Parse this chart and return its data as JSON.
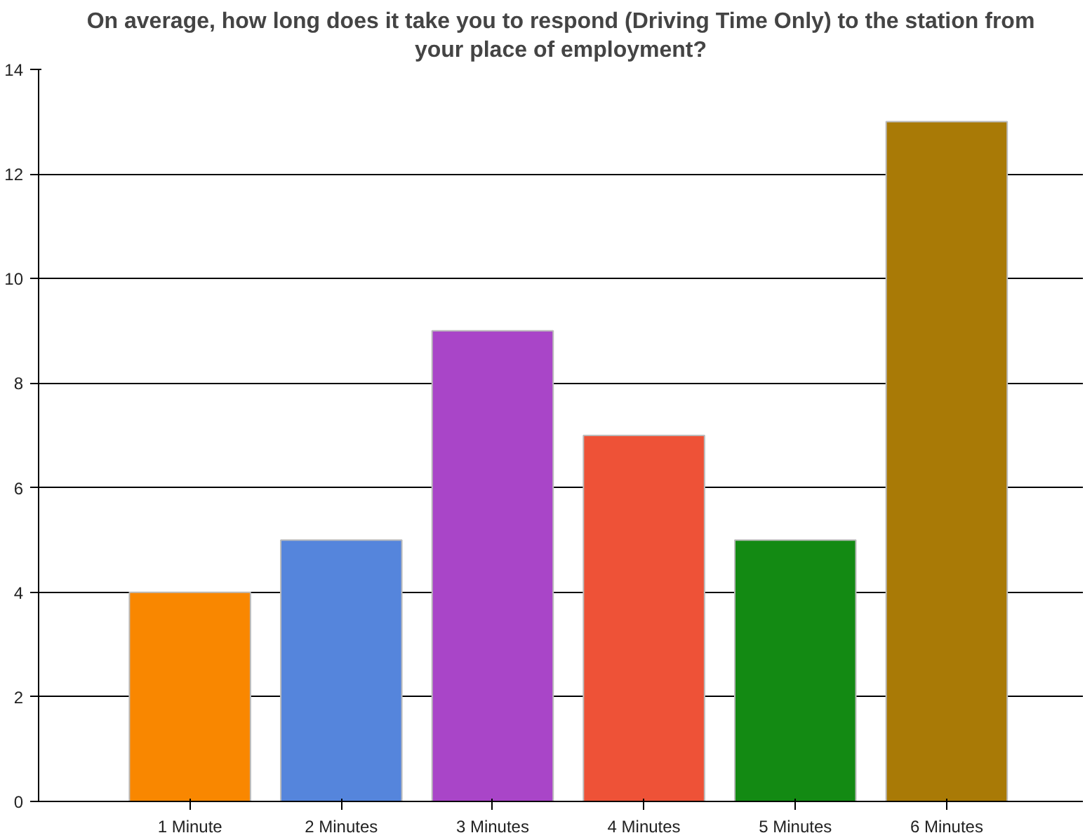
{
  "chart_data": {
    "type": "bar",
    "title": "On average, how long does it take you to respond (Driving Time Only) to the station from your place of employment?",
    "categories": [
      "1 Minute",
      "2 Minutes",
      "3 Minutes",
      "4 Minutes",
      "5 Minutes",
      "6 Minutes"
    ],
    "values": [
      4,
      5,
      9,
      7,
      5,
      13
    ],
    "colors": [
      "#f98700",
      "#5585dc",
      "#a945c8",
      "#ee5237",
      "#138a13",
      "#a97a06"
    ],
    "ylim": [
      0,
      14
    ],
    "yticks": [
      0,
      2,
      4,
      6,
      8,
      10,
      12,
      14
    ],
    "grid": "y"
  }
}
